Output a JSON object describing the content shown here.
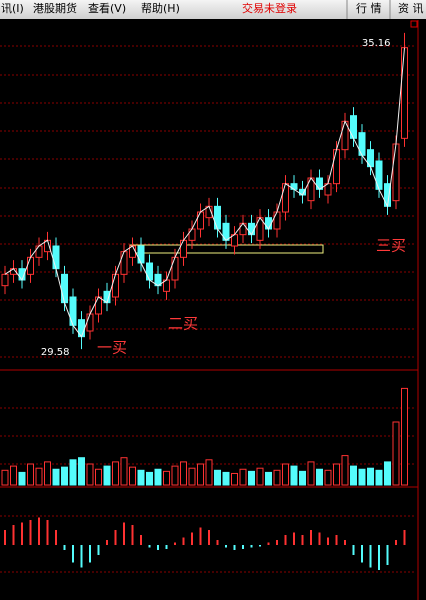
{
  "menu": [
    "讯(I)",
    "港股期货",
    "查看(V)",
    "帮助(H)"
  ],
  "status": "交易未登录",
  "tabs": [
    "行 情",
    "资 讯"
  ],
  "chart_data": {
    "type": "candlestick",
    "open": [
      30.7,
      30.9,
      31.0,
      30.9,
      31.2,
      31.3,
      31.4,
      30.9,
      30.5,
      30.1,
      29.9,
      30.2,
      30.6,
      30.5,
      30.9,
      31.2,
      31.4,
      31.1,
      30.9,
      30.6,
      30.8,
      31.2,
      31.5,
      31.7,
      31.9,
      32.1,
      31.8,
      31.4,
      31.6,
      31.8,
      31.5,
      31.9,
      31.7,
      32.0,
      32.5,
      32.4,
      32.2,
      32.6,
      32.3,
      32.5,
      33.1,
      33.7,
      33.4,
      33.1,
      32.9,
      32.5,
      32.2,
      33.3
    ],
    "close": [
      30.9,
      31.0,
      30.8,
      31.2,
      31.4,
      31.5,
      31.0,
      30.4,
      30.0,
      29.8,
      30.2,
      30.5,
      30.4,
      30.9,
      31.3,
      31.4,
      31.1,
      30.8,
      30.7,
      30.8,
      31.2,
      31.5,
      31.7,
      32.0,
      32.1,
      31.7,
      31.5,
      31.6,
      31.8,
      31.6,
      31.9,
      31.7,
      32.0,
      32.5,
      32.4,
      32.3,
      32.6,
      32.4,
      32.5,
      33.1,
      33.6,
      33.3,
      33.0,
      32.8,
      32.4,
      32.1,
      33.2,
      34.9
    ],
    "high": [
      31.05,
      31.15,
      31.15,
      31.35,
      31.55,
      31.65,
      31.55,
      31.05,
      30.65,
      30.25,
      30.35,
      30.65,
      30.75,
      31.05,
      31.45,
      31.55,
      31.55,
      31.25,
      31.05,
      30.95,
      31.35,
      31.65,
      31.85,
      32.15,
      32.25,
      32.25,
      31.95,
      31.75,
      31.95,
      31.95,
      32.05,
      32.05,
      32.15,
      32.65,
      32.65,
      32.55,
      32.75,
      32.75,
      32.65,
      33.25,
      33.75,
      33.85,
      33.55,
      33.25,
      33.05,
      32.65,
      33.35,
      35.16
    ],
    "low": [
      30.55,
      30.75,
      30.65,
      30.75,
      31.05,
      31.15,
      30.85,
      30.25,
      29.85,
      29.58,
      29.75,
      30.05,
      30.25,
      30.35,
      30.75,
      31.05,
      30.95,
      30.65,
      30.55,
      30.45,
      30.65,
      31.05,
      31.35,
      31.55,
      31.75,
      31.55,
      31.35,
      31.25,
      31.45,
      31.45,
      31.35,
      31.55,
      31.55,
      31.85,
      32.25,
      32.15,
      32.05,
      32.25,
      32.15,
      32.35,
      32.95,
      33.15,
      32.85,
      32.65,
      32.25,
      31.95,
      32.05,
      33.15
    ],
    "ylim": [
      29.3,
      35.3
    ],
    "high_marker": 35.16,
    "low_marker": 29.58,
    "annotations": [
      "一买",
      "二买",
      "三买"
    ],
    "up_color": "#ff3232",
    "down_color": "#54fcfc",
    "volume": [
      14,
      18,
      12,
      20,
      16,
      22,
      15,
      17,
      24,
      26,
      20,
      15,
      18,
      22,
      26,
      17,
      14,
      12,
      15,
      13,
      18,
      22,
      16,
      20,
      24,
      14,
      12,
      11,
      15,
      13,
      16,
      12,
      14,
      20,
      18,
      13,
      22,
      15,
      14,
      20,
      28,
      18,
      15,
      16,
      14,
      22,
      60,
      92
    ],
    "volume_ylim": [
      0,
      100
    ],
    "macd": [
      0.3,
      0.4,
      0.45,
      0.5,
      0.55,
      0.5,
      0.3,
      -0.1,
      -0.35,
      -0.45,
      -0.35,
      -0.2,
      0.1,
      0.3,
      0.45,
      0.4,
      0.2,
      -0.05,
      -0.1,
      -0.08,
      0.05,
      0.15,
      0.25,
      0.35,
      0.3,
      0.1,
      -0.05,
      -0.1,
      -0.08,
      -0.05,
      -0.03,
      0.05,
      0.1,
      0.2,
      0.25,
      0.2,
      0.3,
      0.25,
      0.15,
      0.2,
      0.1,
      -0.2,
      -0.35,
      -0.45,
      -0.5,
      -0.4,
      0.1,
      0.3
    ],
    "macd_ylim": [
      -1,
      1
    ]
  }
}
